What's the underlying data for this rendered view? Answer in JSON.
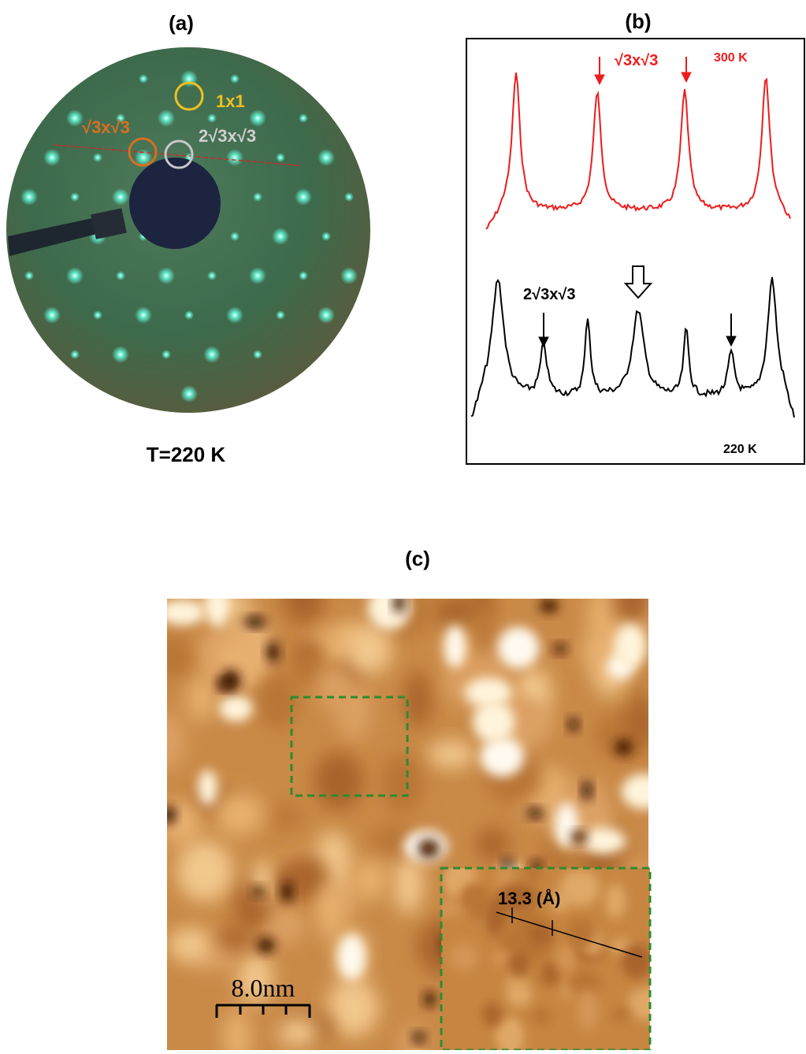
{
  "panels": [
    {
      "label": "(a)",
      "annotations": [
        "1x1",
        "√3x√3",
        "2√3x√3"
      ],
      "caption": "T=220 K"
    },
    {
      "label": "(b)",
      "top": {
        "annotation": "√3x√3",
        "temperature": "300 K"
      },
      "bottom": {
        "annotation": "2√3x√3",
        "temperature": "220 K"
      }
    },
    {
      "label": "(c)",
      "inset_label": "13.3 (Å)",
      "scale_bar": "8.0nm"
    }
  ]
}
